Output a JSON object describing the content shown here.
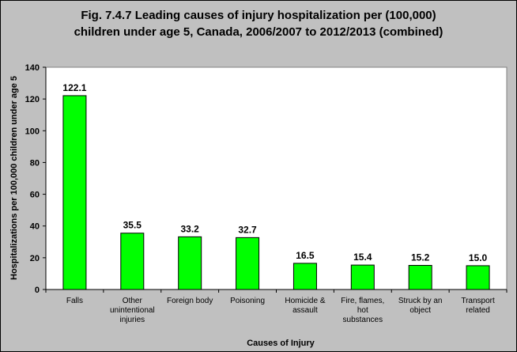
{
  "chart_data": {
    "type": "bar",
    "title_lines": [
      "Fig. 7.4.7 Leading causes of injury hospitalization per (100,000)",
      "children under age 5, Canada, 2006/2007 to 2012/2013 (combined)"
    ],
    "xlabel": "Causes of Injury",
    "ylabel": "Hospitalizations per 100,000 children under age 5",
    "ylim": [
      0,
      140
    ],
    "yticks": [
      0,
      20,
      40,
      60,
      80,
      100,
      120,
      140
    ],
    "categories": [
      [
        "Falls"
      ],
      [
        "Other",
        "unintentional",
        "injuries"
      ],
      [
        "Foreign body"
      ],
      [
        "Poisoning"
      ],
      [
        "Homicide &",
        "assault"
      ],
      [
        "Fire, flames,",
        "hot",
        "substances"
      ],
      [
        "Struck by an",
        "object"
      ],
      [
        "Transport",
        "related"
      ]
    ],
    "values": [
      122.1,
      35.5,
      33.2,
      32.7,
      16.5,
      15.4,
      15.2,
      15.0
    ],
    "value_labels": [
      "122.1",
      "35.5",
      "33.2",
      "32.7",
      "16.5",
      "15.4",
      "15.2",
      "15.0"
    ],
    "grid": false,
    "legend": "none",
    "colors": {
      "bar_fill": "#00ff00",
      "bar_stroke": "#000000",
      "plot_bg": "#ffffff",
      "frame_bg": "#c0c0c0"
    }
  }
}
